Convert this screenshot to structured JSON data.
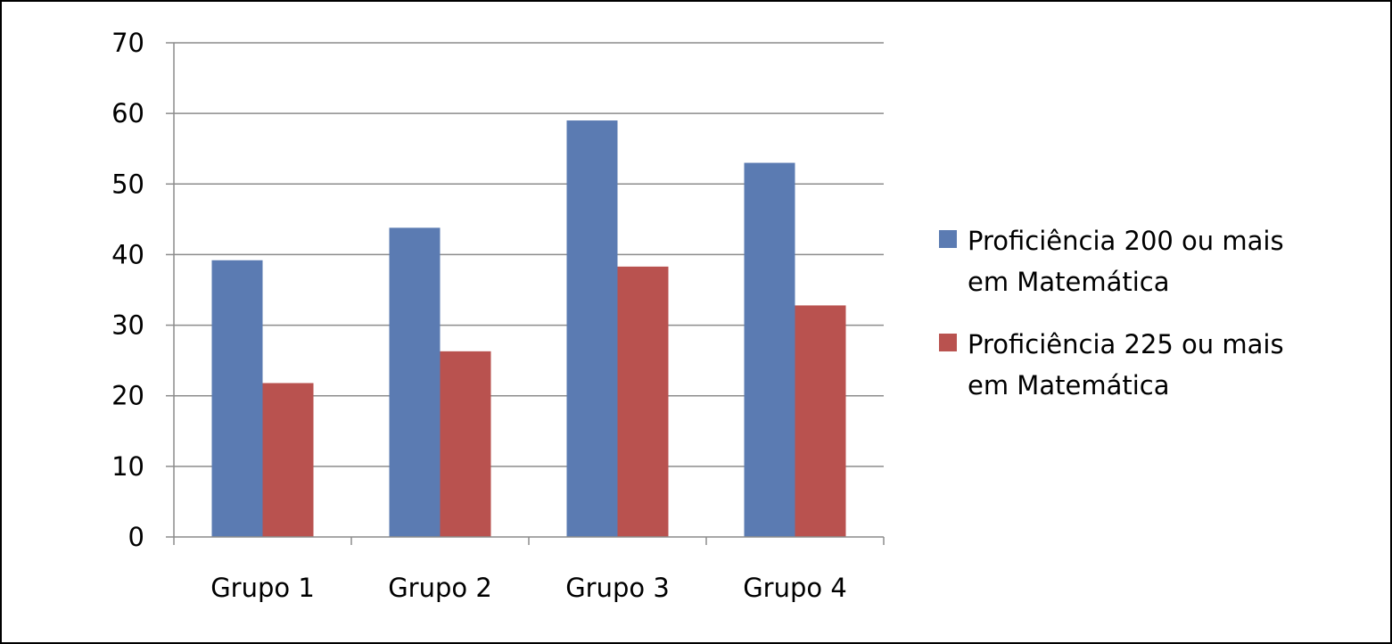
{
  "chart_data": {
    "type": "bar",
    "title": "",
    "xlabel": "",
    "ylabel": "",
    "categories": [
      "Grupo 1",
      "Grupo 2",
      "Grupo 3",
      "Grupo 4"
    ],
    "ylim": [
      0,
      70
    ],
    "yticks": [
      "0",
      "10",
      "20",
      "30",
      "40",
      "50",
      "60",
      "70"
    ],
    "grid": true,
    "legend_position": "right",
    "series": [
      {
        "name": "Proficiência 200 ou mais em Matemática",
        "legend_lines": [
          "Proficiência 200 ou mais",
          "em Matemática"
        ],
        "color": "#5b7bb2",
        "values": [
          39.2,
          43.8,
          59.0,
          53.0
        ]
      },
      {
        "name": "Proficiência 225 ou mais em Matemática",
        "legend_lines": [
          "Proficiência 225 ou mais",
          "em Matemática"
        ],
        "color": "#b9524f",
        "values": [
          21.8,
          26.3,
          38.3,
          32.8
        ]
      }
    ]
  }
}
